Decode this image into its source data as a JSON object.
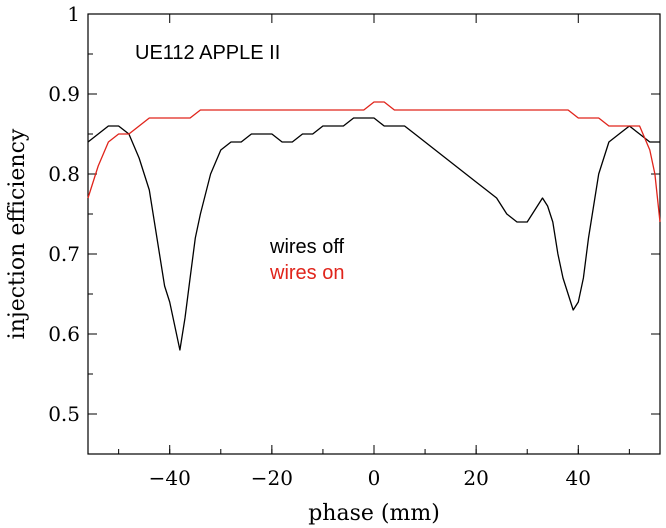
{
  "chart_data": {
    "type": "line",
    "title": "UE112 APPLE II",
    "xlabel": "phase (mm)",
    "ylabel": "injection efficiency",
    "xlim": [
      -56,
      56
    ],
    "ylim": [
      0.45,
      1.0
    ],
    "xticks": [
      -40,
      -20,
      0,
      20,
      40
    ],
    "xtick_labels": [
      "−40",
      "−20",
      "0",
      "20",
      "40"
    ],
    "yticks": [
      0.5,
      0.6,
      0.7,
      0.8,
      0.9,
      1.0
    ],
    "ytick_labels": [
      "0.5",
      "0.6",
      "0.7",
      "0.8",
      "0.9",
      "1"
    ],
    "grid": false,
    "legend": "text annotations in plot center",
    "series": [
      {
        "name": "wires off",
        "color": "#000000",
        "x": [
          -56,
          -54,
          -52,
          -50,
          -48,
          -46,
          -44,
          -43,
          -42,
          -41,
          -40,
          -39,
          -38,
          -37,
          -36,
          -35,
          -34,
          -32,
          -30,
          -28,
          -26,
          -24,
          -22,
          -20,
          -18,
          -16,
          -14,
          -12,
          -10,
          -8,
          -6,
          -4,
          -2,
          0,
          2,
          4,
          6,
          8,
          10,
          12,
          14,
          16,
          18,
          20,
          22,
          24,
          26,
          28,
          30,
          32,
          33,
          34,
          35,
          36,
          37,
          38,
          39,
          40,
          41,
          42,
          43,
          44,
          46,
          48,
          50,
          52,
          54,
          56
        ],
        "values": [
          0.84,
          0.85,
          0.86,
          0.86,
          0.85,
          0.82,
          0.78,
          0.74,
          0.7,
          0.66,
          0.64,
          0.61,
          0.58,
          0.62,
          0.67,
          0.72,
          0.75,
          0.8,
          0.83,
          0.84,
          0.84,
          0.85,
          0.85,
          0.85,
          0.84,
          0.84,
          0.85,
          0.85,
          0.86,
          0.86,
          0.86,
          0.87,
          0.87,
          0.87,
          0.86,
          0.86,
          0.86,
          0.85,
          0.84,
          0.83,
          0.82,
          0.81,
          0.8,
          0.79,
          0.78,
          0.77,
          0.75,
          0.74,
          0.74,
          0.76,
          0.77,
          0.76,
          0.74,
          0.7,
          0.67,
          0.65,
          0.63,
          0.64,
          0.67,
          0.72,
          0.76,
          0.8,
          0.84,
          0.85,
          0.86,
          0.85,
          0.84,
          0.84
        ]
      },
      {
        "name": "wires on",
        "color": "#e0241b",
        "x": [
          -56,
          -55,
          -54,
          -52,
          -50,
          -48,
          -46,
          -44,
          -42,
          -40,
          -38,
          -36,
          -34,
          -32,
          -30,
          -28,
          -26,
          -24,
          -22,
          -20,
          -18,
          -16,
          -14,
          -12,
          -10,
          -8,
          -6,
          -4,
          -2,
          0,
          2,
          4,
          6,
          8,
          10,
          12,
          14,
          16,
          18,
          20,
          22,
          24,
          26,
          28,
          30,
          32,
          34,
          36,
          38,
          40,
          42,
          44,
          46,
          48,
          50,
          52,
          54,
          55,
          56
        ],
        "values": [
          0.77,
          0.79,
          0.81,
          0.84,
          0.85,
          0.85,
          0.86,
          0.87,
          0.87,
          0.87,
          0.87,
          0.87,
          0.88,
          0.88,
          0.88,
          0.88,
          0.88,
          0.88,
          0.88,
          0.88,
          0.88,
          0.88,
          0.88,
          0.88,
          0.88,
          0.88,
          0.88,
          0.88,
          0.88,
          0.89,
          0.89,
          0.88,
          0.88,
          0.88,
          0.88,
          0.88,
          0.88,
          0.88,
          0.88,
          0.88,
          0.88,
          0.88,
          0.88,
          0.88,
          0.88,
          0.88,
          0.88,
          0.88,
          0.88,
          0.87,
          0.87,
          0.87,
          0.86,
          0.86,
          0.86,
          0.86,
          0.83,
          0.8,
          0.74
        ]
      }
    ]
  }
}
